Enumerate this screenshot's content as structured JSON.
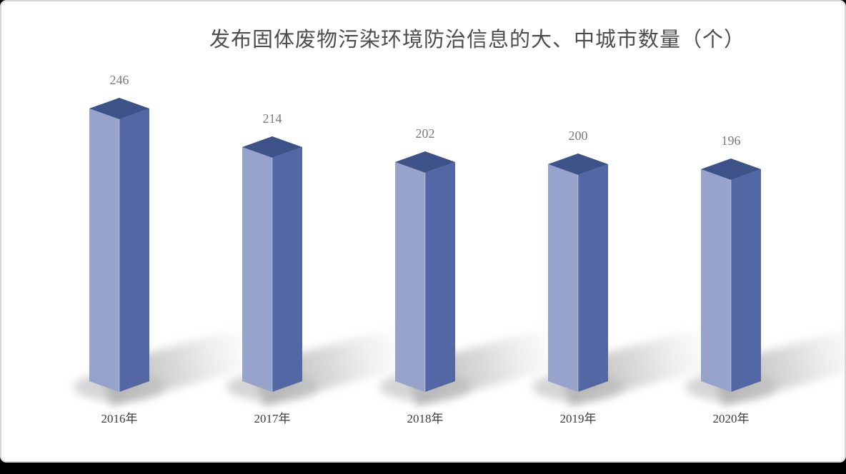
{
  "page": {
    "card_background": "#ffffff",
    "card_border_color": "#d6d6d6",
    "bottom_strip_color": "#000000"
  },
  "chart_data": {
    "type": "bar",
    "variant": "3d-column",
    "title": "发布固体废物污染环境防治信息的大、中城市数量（个）",
    "categories": [
      "2016年",
      "2017年",
      "2018年",
      "2019年",
      "2020年"
    ],
    "values": [
      246,
      214,
      202,
      200,
      196
    ],
    "show_data_labels": true,
    "legend_position": "none",
    "gridlines": false,
    "axes_visible": false,
    "background": "#ffffff",
    "colors": {
      "column_top": "#3c5288",
      "column_left": "#98a3cc",
      "column_right": "#5267a4",
      "shadow": "#b9b9b9",
      "title_text": "#4d4d4d",
      "value_label_text": "#7b7b7b",
      "category_label_text": "#3d3d3d"
    }
  }
}
